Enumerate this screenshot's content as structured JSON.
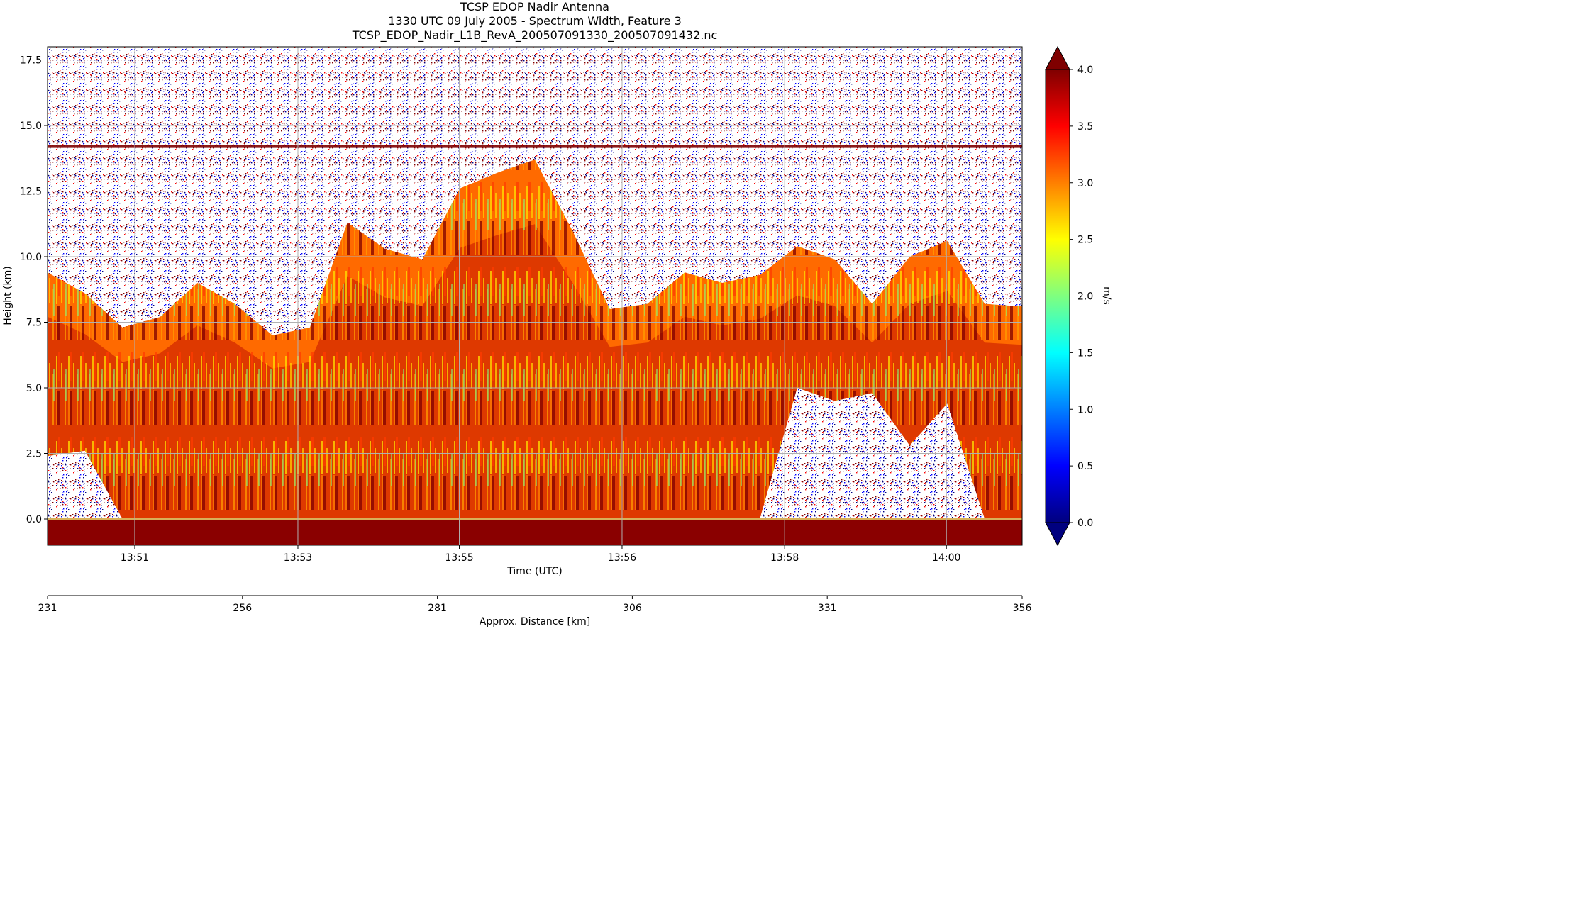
{
  "title_lines": [
    "TCSP EDOP Nadir Antenna",
    "1330 UTC 09 July 2005 - Spectrum Width, Feature 3",
    "TCSP_EDOP_Nadir_L1B_RevA_200507091330_200507091432.nc"
  ],
  "chart_data": {
    "type": "heatmap",
    "title": "TCSP EDOP Nadir Antenna",
    "xlabel": "Time (UTC)",
    "ylabel": "Height (km)",
    "ylim": [
      -1.0,
      18.0
    ],
    "yticks": [
      0.0,
      2.5,
      5.0,
      7.5,
      10.0,
      12.5,
      15.0,
      17.5
    ],
    "ytick_labels": [
      "0.0",
      "2.5",
      "5.0",
      "7.5",
      "10.0",
      "12.5",
      "15.0",
      "17.5"
    ],
    "xticks": [
      "13:51",
      "13:53",
      "13:55",
      "13:56",
      "13:58",
      "14:00"
    ],
    "grid": true,
    "secondary_x_axis": {
      "label": "Approx. Distance [km]",
      "range": [
        231,
        356
      ],
      "ticks": [
        231,
        256,
        281,
        306,
        331,
        356
      ]
    },
    "colorbar": {
      "label": "m/s",
      "range": [
        0.0,
        4.0
      ],
      "ticks": [
        "0.0",
        "0.5",
        "1.0",
        "1.5",
        "2.0",
        "2.5",
        "3.0",
        "3.5",
        "4.0"
      ],
      "extend": "both",
      "colormap": "jet",
      "colors": [
        "#00007f",
        "#0000ff",
        "#007fff",
        "#00ffff",
        "#7fff7f",
        "#ffff00",
        "#ff7f00",
        "#ff0000",
        "#7f0000"
      ]
    },
    "features": {
      "echo_top_profile_km": [
        9.4,
        8.6,
        7.3,
        7.7,
        9.0,
        8.2,
        7.0,
        7.3,
        11.3,
        10.3,
        9.9,
        12.6,
        13.2,
        13.7,
        11.0,
        8.0,
        8.2,
        9.4,
        9.0,
        9.3,
        10.4,
        9.9,
        8.2,
        10.0,
        10.6,
        8.2,
        8.1
      ],
      "cloud_base_mask_km": [
        2.4,
        2.6,
        0.0,
        0.0,
        0.0,
        0.0,
        0.0,
        0.0,
        0.0,
        0.0,
        0.0,
        0.0,
        0.0,
        0.0,
        0.0,
        0.0,
        0.0,
        0.0,
        0.0,
        0.0,
        5.0,
        4.5,
        4.8,
        2.8,
        4.4,
        0.0,
        0.0
      ],
      "layer_line_km": 14.2,
      "surface_km": 0.0
    }
  }
}
